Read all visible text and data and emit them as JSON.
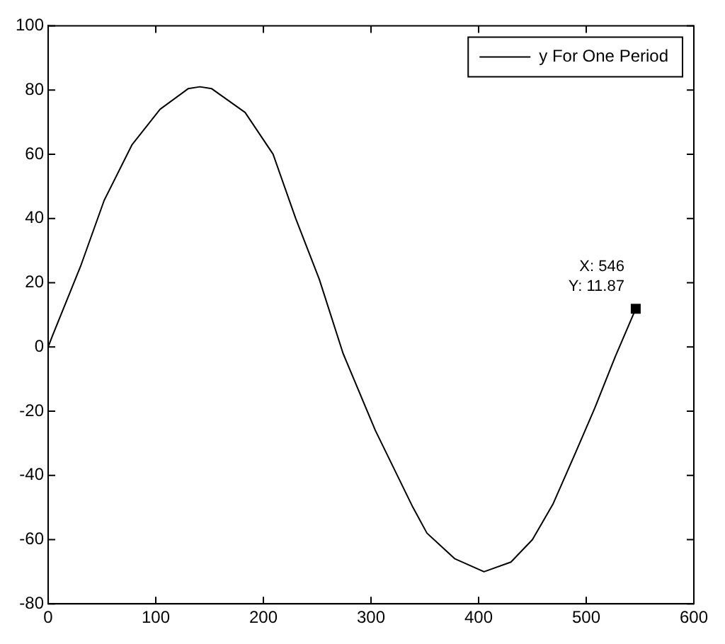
{
  "chart_data": {
    "type": "line",
    "x": [
      0,
      4,
      30,
      52,
      78,
      104,
      130,
      141,
      152,
      183,
      209,
      230,
      252,
      274,
      304,
      339,
      352,
      378,
      405,
      430,
      450,
      469,
      490,
      508,
      527,
      546
    ],
    "series": [
      {
        "name": "y For One Period",
        "color": "#000000",
        "values": [
          0,
          3.5,
          25,
          45.6,
          63,
          74,
          80.4,
          81,
          80.4,
          73,
          60,
          40,
          21,
          -2,
          -26,
          -50,
          -58,
          -66,
          -70,
          -67,
          -60,
          -49,
          -33,
          -19,
          -3,
          11.87
        ]
      }
    ],
    "xlim": [
      0,
      600
    ],
    "xticks": [
      0,
      100,
      200,
      300,
      400,
      500,
      600
    ],
    "ylim": [
      -80,
      100
    ],
    "yticks": [
      -80,
      -60,
      -40,
      -20,
      0,
      20,
      40,
      60,
      80,
      100
    ],
    "grid": false,
    "legend": "top right",
    "marker": "none",
    "line_style": "solid",
    "annotations": [
      {
        "text": "X: 546\nY: 11.87",
        "x": 546,
        "y": 11.87
      }
    ]
  }
}
